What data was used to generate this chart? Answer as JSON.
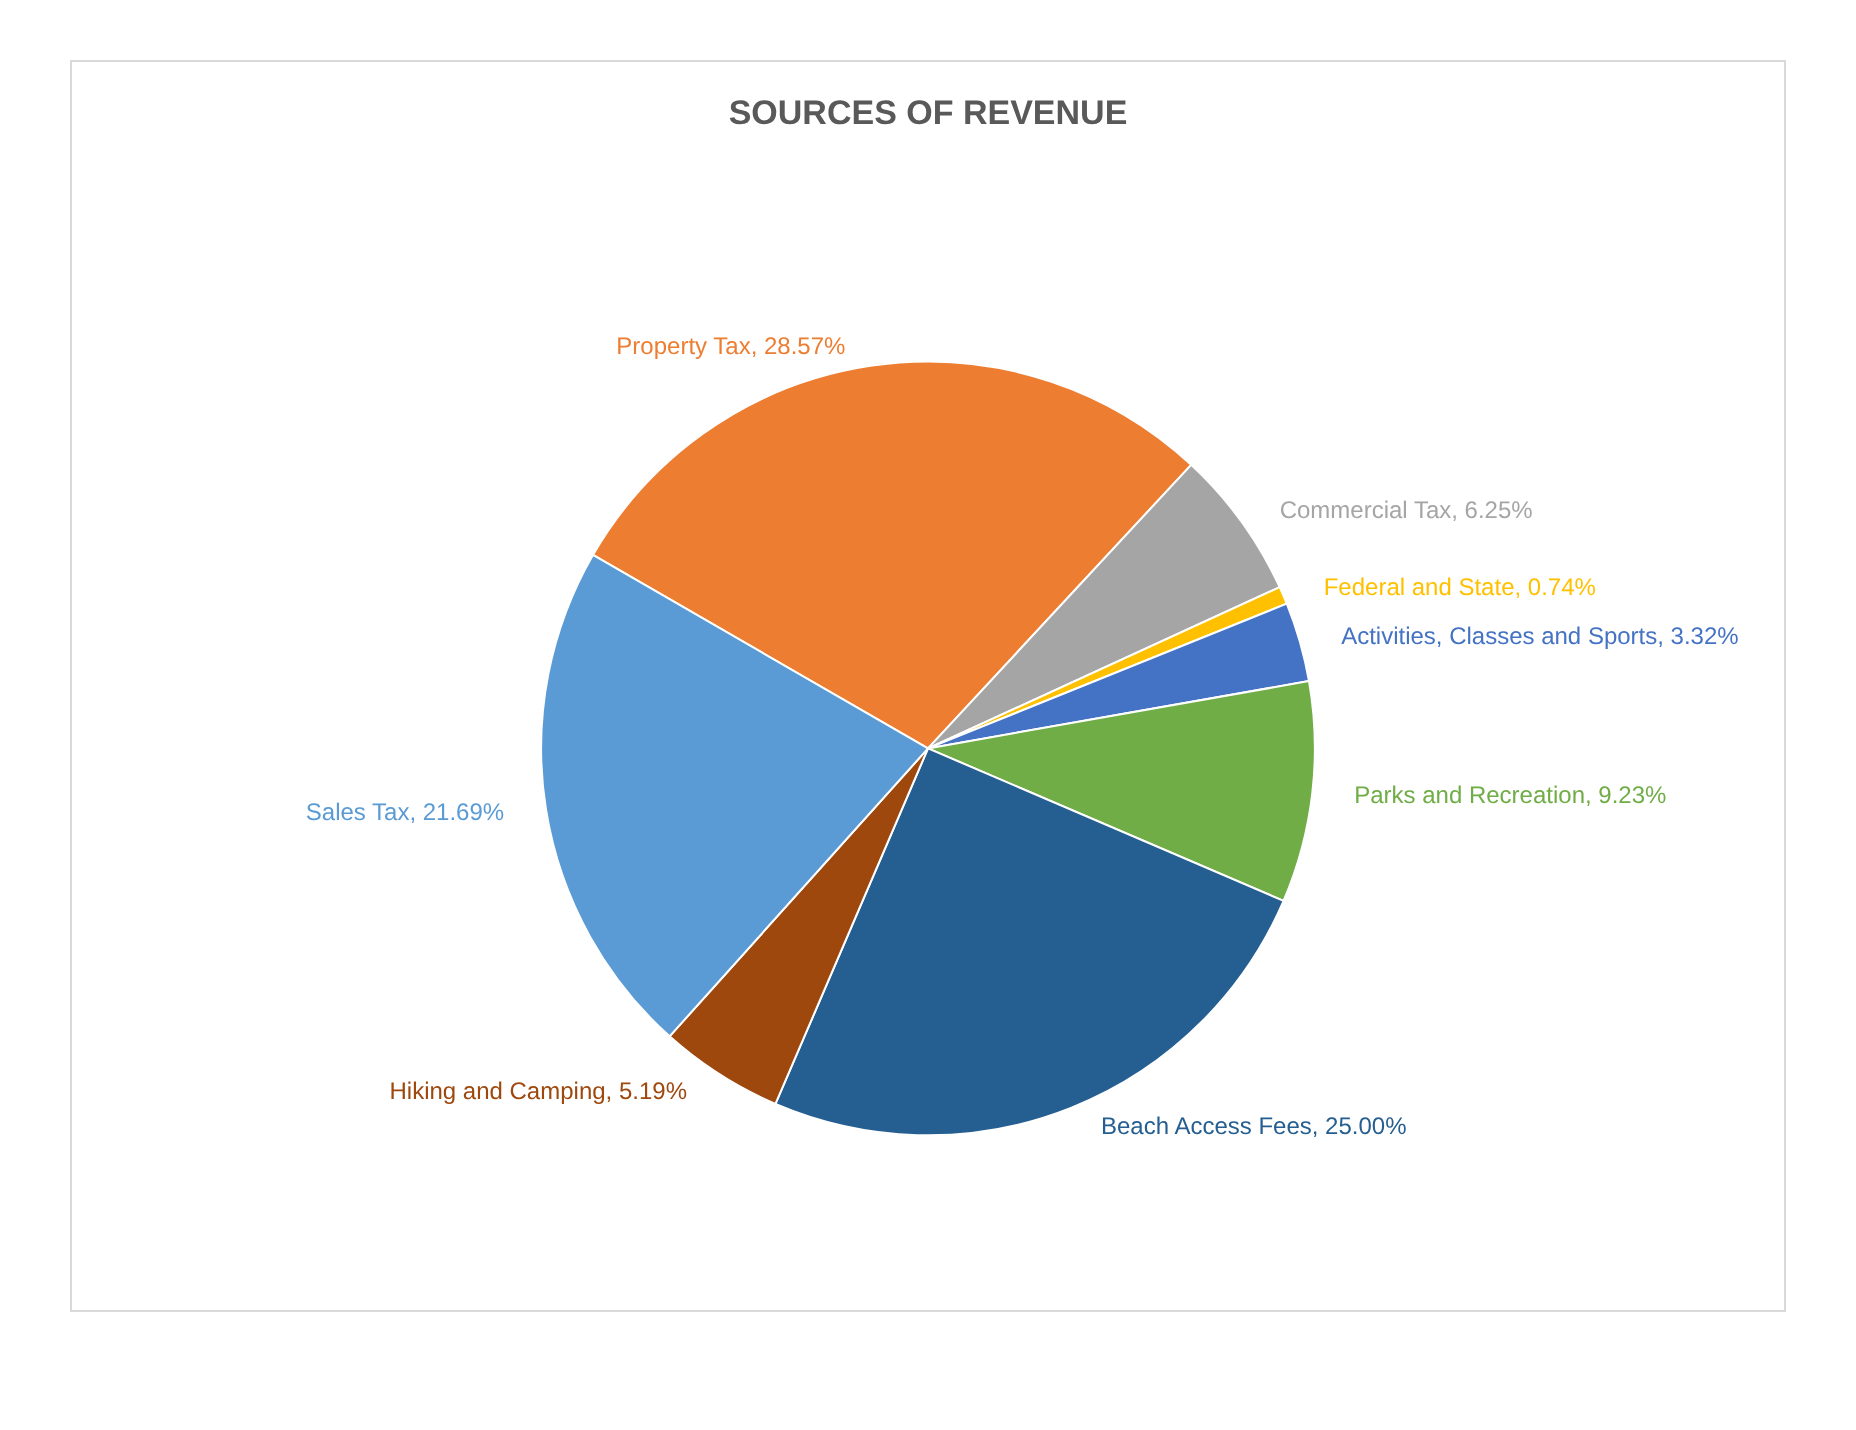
{
  "chart_data": {
    "type": "pie",
    "title": "SOURCES OF REVENUE",
    "categories": [
      "Property Tax",
      "Commercial Tax",
      "Federal and State",
      "Activities, Classes and Sports",
      "Parks and Recreation",
      "Beach Access Fees",
      "Hiking and Camping",
      "Sales Tax"
    ],
    "values": [
      28.57,
      6.25,
      0.74,
      3.32,
      9.23,
      25.0,
      5.19,
      21.69
    ],
    "value_labels": [
      "28.57%",
      "6.25%",
      "0.74%",
      "3.32%",
      "9.23%",
      "25.00%",
      "5.19%",
      "21.69%"
    ],
    "colors": [
      "#ed7d31",
      "#a5a5a5",
      "#ffc000",
      "#4472c4",
      "#70ad47",
      "#255e91",
      "#9e480e",
      "#5b9bd5"
    ],
    "legend": false
  }
}
